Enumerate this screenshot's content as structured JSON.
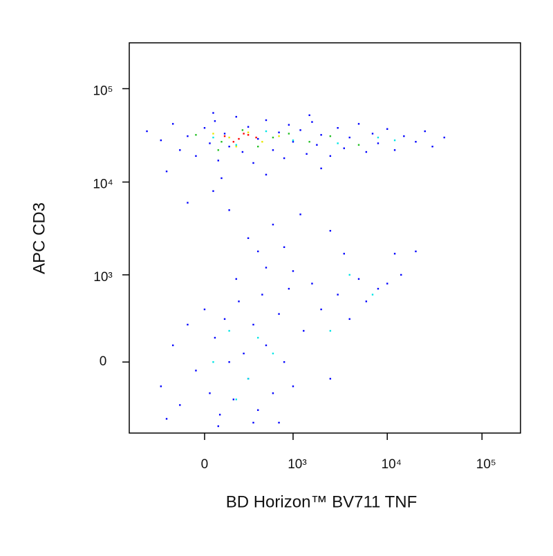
{
  "chart_data": {
    "type": "scatter",
    "xlabel": "BD Horizon™ BV711 TNF",
    "ylabel": "APC CD3",
    "xscale": "biexponential",
    "yscale": "biexponential",
    "xlim": [
      -717,
      255000
    ],
    "ylim": [
      -660,
      310000
    ],
    "xticks": [
      0,
      {
        "value": 1000,
        "label": "10³"
      },
      {
        "value": 10000,
        "label": "10⁴"
      },
      {
        "value": 100000,
        "label": "10⁵"
      }
    ],
    "yticks": [
      0,
      {
        "value": 1000,
        "label": "10³"
      },
      {
        "value": 10000,
        "label": "10⁴"
      },
      {
        "value": 100000,
        "label": "10⁵"
      }
    ],
    "series": [
      {
        "color": "#0000ff",
        "x": [
          -450,
          -300,
          -200,
          -150,
          -100,
          -50,
          0,
          30,
          60,
          80,
          120,
          150,
          200,
          250,
          300,
          350,
          400,
          500,
          600,
          700,
          800,
          900,
          1000,
          1200,
          1400,
          1600,
          1800,
          2000,
          2500,
          3000,
          3500,
          4000,
          5000,
          6000,
          7000,
          8000,
          10000,
          12000,
          15000,
          20000,
          25000,
          30000,
          40000,
          -250,
          100,
          500,
          2000,
          50,
          1500,
          150,
          300,
          50,
          600,
          -100,
          400,
          1200,
          800,
          2500,
          3500,
          20000,
          12000,
          -300,
          -200,
          -150,
          -100,
          -50,
          0,
          30,
          60,
          90,
          120,
          150,
          180,
          220,
          260,
          300,
          350,
          400,
          450,
          500,
          600,
          700,
          800,
          900,
          1000,
          1300,
          1600,
          2000,
          2500,
          3000,
          4000,
          5000,
          6000,
          8000,
          10000,
          14000,
          -250,
          80,
          350,
          700,
          200,
          500,
          1000
        ],
        "y": [
          35000,
          28000,
          42000,
          22000,
          31000,
          19000,
          38000,
          26000,
          45000,
          17000,
          33000,
          24000,
          50000,
          21000,
          39000,
          16000,
          29000,
          46000,
          22000,
          34000,
          18000,
          41000,
          27000,
          36000,
          20000,
          44000,
          25000,
          32000,
          19000,
          38000,
          23000,
          30000,
          42000,
          21000,
          33000,
          26000,
          37000,
          22000,
          31000,
          27000,
          35000,
          24000,
          30000,
          13000,
          11000,
          12000,
          14000,
          55000,
          52000,
          5000,
          2500,
          8000,
          3500,
          6000,
          1800,
          4500,
          2000,
          3000,
          1700,
          1800,
          1700,
          -150,
          100,
          -300,
          250,
          -50,
          400,
          -200,
          150,
          -400,
          300,
          0,
          -250,
          500,
          50,
          -100,
          250,
          -350,
          600,
          100,
          -200,
          350,
          0,
          700,
          -150,
          200,
          800,
          400,
          -100,
          600,
          300,
          900,
          500,
          700,
          800,
          1000,
          -450,
          -550,
          -500,
          -500,
          900,
          1200,
          1100
        ]
      },
      {
        "color": "#00e5e5",
        "x": [
          50,
          200,
          500,
          1000,
          3000,
          8000,
          12000,
          50,
          150,
          300,
          400,
          200,
          600,
          2500,
          7000,
          4000
        ],
        "y": [
          30000,
          25000,
          35000,
          28000,
          26000,
          30000,
          28000,
          0,
          200,
          -100,
          150,
          -250,
          50,
          200,
          600,
          1000
        ]
      },
      {
        "color": "#22c022",
        "x": [
          -50,
          100,
          250,
          400,
          600,
          900,
          1500,
          2500,
          5000,
          80
        ],
        "y": [
          32000,
          27000,
          36000,
          24000,
          30000,
          33000,
          27000,
          31000,
          25000,
          22000
        ]
      },
      {
        "color": "#e8e800",
        "x": [
          50,
          150,
          300,
          450,
          700,
          200
        ],
        "y": [
          33000,
          30000,
          34000,
          27000,
          31000,
          24000
        ]
      },
      {
        "color": "#ff0000",
        "x": [
          120,
          220,
          300,
          380,
          180,
          260
        ],
        "y": [
          31000,
          29000,
          32000,
          30000,
          27000,
          33000
        ]
      }
    ]
  }
}
